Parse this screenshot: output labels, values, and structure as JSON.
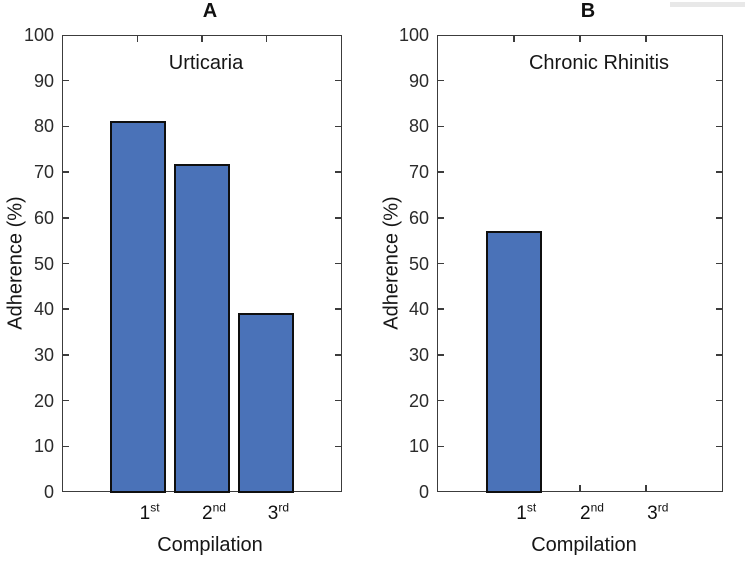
{
  "figure": {
    "kind": "two-panel bar figure",
    "background": "#ffffff"
  },
  "colors": {
    "bar_fill": "#4a72b8",
    "bar_edge": "#0f0f0f",
    "axis": "#3c3c3c",
    "text": "#161616",
    "artifact_strip": "#e8e8e8"
  },
  "chart_data": [
    {
      "type": "bar",
      "panel_label": "A",
      "title": "Urticaria",
      "xlabel": "Compilation",
      "ylabel": "Adherence (%)",
      "categories": [
        "1st",
        "2nd",
        "3rd"
      ],
      "category_parts": [
        {
          "base": "1",
          "sup": "st"
        },
        {
          "base": "2",
          "sup": "nd"
        },
        {
          "base": "3",
          "sup": "rd"
        }
      ],
      "values": [
        81,
        71.5,
        39
      ],
      "ylim": [
        0,
        100
      ],
      "yticks": [
        0,
        10,
        20,
        30,
        40,
        50,
        60,
        70,
        80,
        90,
        100
      ],
      "grid": false,
      "legend": null,
      "bar_fill": "#4a72b8",
      "bar_edge": "#0f0f0f"
    },
    {
      "type": "bar",
      "panel_label": "B",
      "title": "Chronic Rhinitis",
      "xlabel": "Compilation",
      "ylabel": "Adherence (%)",
      "categories": [
        "1st",
        "2nd",
        "3rd"
      ],
      "category_parts": [
        {
          "base": "1",
          "sup": "st"
        },
        {
          "base": "2",
          "sup": "nd"
        },
        {
          "base": "3",
          "sup": "rd"
        }
      ],
      "values": [
        57,
        null,
        null
      ],
      "ylim": [
        0,
        100
      ],
      "yticks": [
        0,
        10,
        20,
        30,
        40,
        50,
        60,
        70,
        80,
        90,
        100
      ],
      "grid": false,
      "legend": null,
      "bar_fill": "#4a72b8",
      "bar_edge": "#0f0f0f"
    }
  ]
}
